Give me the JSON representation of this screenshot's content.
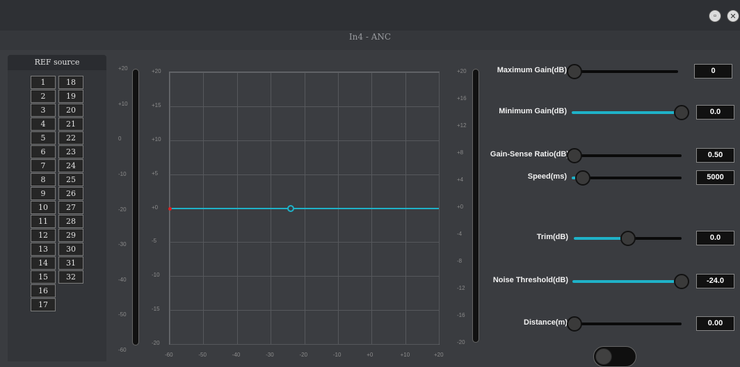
{
  "dialog": {
    "title": "In4 - ANC"
  },
  "window": {
    "restore_icon": "restore-icon",
    "close_icon": "close-icon"
  },
  "ref_source": {
    "title": "REF source",
    "col1": [
      "1",
      "2",
      "3",
      "4",
      "5",
      "6",
      "7",
      "8",
      "9",
      "10",
      "11",
      "12",
      "13",
      "14",
      "15",
      "16",
      "17"
    ],
    "col2": [
      "18",
      "19",
      "20",
      "21",
      "22",
      "23",
      "24",
      "25",
      "26",
      "27",
      "28",
      "29",
      "30",
      "31",
      "32"
    ]
  },
  "meters": {
    "left_scale": [
      "+20",
      "+10",
      "0",
      "-10",
      "-20",
      "-30",
      "-40",
      "-50",
      "-60"
    ],
    "right_scale": [
      "+20",
      "+16",
      "+12",
      "+8",
      "+4",
      "+0",
      "-4",
      "-8",
      "-12",
      "-16",
      "-20"
    ]
  },
  "chart_data": {
    "type": "line",
    "x_ticks": [
      "-60",
      "-50",
      "-40",
      "-30",
      "-20",
      "-10",
      "+0",
      "+10",
      "+20"
    ],
    "y_ticks": [
      "+20",
      "+15",
      "+10",
      "+5",
      "+0",
      "-5",
      "-10",
      "-15",
      "-20"
    ],
    "xlim": [
      -60,
      20
    ],
    "ylim": [
      -20,
      20
    ],
    "grid": true,
    "series": [
      {
        "x": [
          -60,
          20
        ],
        "y": [
          0,
          0
        ]
      }
    ],
    "node": {
      "x": -24,
      "y": 0
    },
    "colors": {
      "curve": "#1fb2c8",
      "marker": "#e01e1e"
    }
  },
  "params": [
    {
      "label": "Maximum Gain(dB)",
      "value": "0",
      "fill": 0.0
    },
    {
      "label": "Minimum Gain(dB)",
      "value": "0.0",
      "fill": 1.0
    },
    {
      "label": "Gain-Sense Ratio(dB)",
      "value": "0.50",
      "fill": 0.0
    },
    {
      "label": "Speed(ms)",
      "value": "5000",
      "fill": 0.1
    },
    {
      "label": "Trim(dB)",
      "value": "0.0",
      "fill": 0.5
    },
    {
      "label": "Noise Threshold(dB)",
      "value": "-24.0",
      "fill": 1.0
    },
    {
      "label": "Distance(m)",
      "value": "0.00",
      "fill": 0.0
    }
  ],
  "toggle": {
    "state": "off"
  },
  "colors": {
    "accent": "#1fb2c8",
    "background": "#3a3c40"
  }
}
